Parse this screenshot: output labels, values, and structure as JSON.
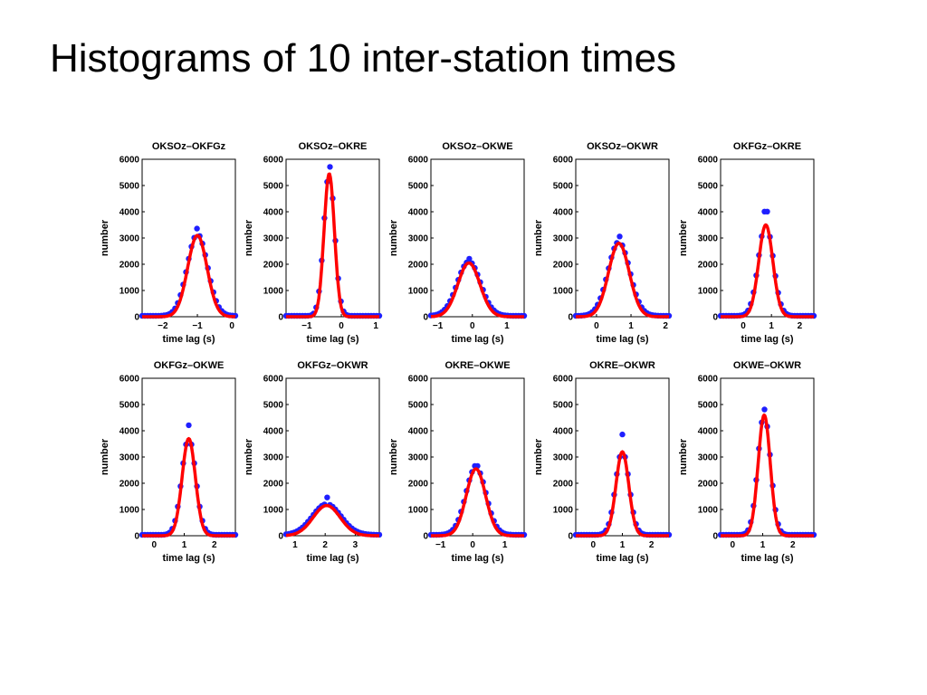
{
  "title": "Histograms of 10 inter-station times",
  "chart_data": [
    {
      "type": "scatter",
      "title": "OKSOz–OKFGz",
      "xlabel": "time lag (s)",
      "ylabel": "number",
      "xlim": [
        -2.6,
        0.1
      ],
      "ylim": [
        0,
        6000
      ],
      "xticks": [
        -2,
        -1,
        0
      ],
      "yticks": [
        0,
        1000,
        2000,
        3000,
        4000,
        5000,
        6000
      ],
      "peak_x": -1.0,
      "fit_peak": 3100,
      "width": 0.28,
      "points_peak": 3300
    },
    {
      "type": "scatter",
      "title": "OKSOz–OKRE",
      "xlabel": "time lag (s)",
      "ylabel": "number",
      "xlim": [
        -1.6,
        1.1
      ],
      "ylim": [
        0,
        6000
      ],
      "xticks": [
        -1,
        0,
        1
      ],
      "yticks": [
        0,
        1000,
        2000,
        3000,
        4000,
        5000,
        6000
      ],
      "peak_x": -0.35,
      "fit_peak": 5450,
      "width": 0.15,
      "points_peak": 5650
    },
    {
      "type": "scatter",
      "title": "OKSOz–OKWE",
      "xlabel": "time lag (s)",
      "ylabel": "number",
      "xlim": [
        -1.2,
        1.5
      ],
      "ylim": [
        0,
        6000
      ],
      "xticks": [
        -1,
        0,
        1
      ],
      "yticks": [
        0,
        1000,
        2000,
        3000,
        4000,
        5000,
        6000
      ],
      "peak_x": -0.1,
      "fit_peak": 2050,
      "width": 0.32,
      "points_peak": 2150
    },
    {
      "type": "scatter",
      "title": "OKSOz–OKWR",
      "xlabel": "time lag (s)",
      "ylabel": "number",
      "xlim": [
        -0.6,
        2.1
      ],
      "ylim": [
        0,
        6000
      ],
      "xticks": [
        0,
        1,
        2
      ],
      "yticks": [
        0,
        1000,
        2000,
        3000,
        4000,
        5000,
        6000
      ],
      "peak_x": 0.65,
      "fit_peak": 2800,
      "width": 0.3,
      "points_peak": 3000
    },
    {
      "type": "scatter",
      "title": "OKFGz–OKRE",
      "xlabel": "time lag (s)",
      "ylabel": "number",
      "xlim": [
        -0.8,
        2.5
      ],
      "ylim": [
        0,
        6000
      ],
      "xticks": [
        0,
        1,
        2
      ],
      "yticks": [
        0,
        1000,
        2000,
        3000,
        4000,
        5000,
        6000
      ],
      "peak_x": 0.8,
      "fit_peak": 3500,
      "width": 0.25,
      "points_peak": 3950
    },
    {
      "type": "scatter",
      "title": "OKFGz–OKWE",
      "xlabel": "time lag (s)",
      "ylabel": "number",
      "xlim": [
        -0.4,
        2.7
      ],
      "ylim": [
        0,
        6000
      ],
      "xticks": [
        0,
        1,
        2
      ],
      "yticks": [
        0,
        1000,
        2000,
        3000,
        4000,
        5000,
        6000
      ],
      "peak_x": 1.15,
      "fit_peak": 3700,
      "width": 0.22,
      "points_peak": 4150
    },
    {
      "type": "scatter",
      "title": "OKFGz–OKWR",
      "xlabel": "time lag (s)",
      "ylabel": "number",
      "xlim": [
        0.7,
        3.8
      ],
      "ylim": [
        0,
        6000
      ],
      "xticks": [
        1,
        2,
        3
      ],
      "yticks": [
        0,
        1000,
        2000,
        3000,
        4000,
        5000,
        6000
      ],
      "peak_x": 2.05,
      "fit_peak": 1150,
      "width": 0.45,
      "points_peak": 1400
    },
    {
      "type": "scatter",
      "title": "OKRE–OKWE",
      "xlabel": "time lag (s)",
      "ylabel": "number",
      "xlim": [
        -1.3,
        1.6
      ],
      "ylim": [
        0,
        6000
      ],
      "xticks": [
        -1,
        0,
        1
      ],
      "yticks": [
        0,
        1000,
        2000,
        3000,
        4000,
        5000,
        6000
      ],
      "peak_x": 0.1,
      "fit_peak": 2550,
      "width": 0.3,
      "points_peak": 2600
    },
    {
      "type": "scatter",
      "title": "OKRE–OKWR",
      "xlabel": "time lag (s)",
      "ylabel": "number",
      "xlim": [
        -0.6,
        2.6
      ],
      "ylim": [
        0,
        6000
      ],
      "xticks": [
        0,
        1,
        2
      ],
      "yticks": [
        0,
        1000,
        2000,
        3000,
        4000,
        5000,
        6000
      ],
      "peak_x": 1.0,
      "fit_peak": 3200,
      "width": 0.22,
      "points_peak": 3800
    },
    {
      "type": "scatter",
      "title": "OKWE–OKWR",
      "xlabel": "time lag (s)",
      "ylabel": "number",
      "xlim": [
        -0.4,
        2.7
      ],
      "ylim": [
        0,
        6000
      ],
      "xticks": [
        0,
        1,
        2
      ],
      "yticks": [
        0,
        1000,
        2000,
        3000,
        4000,
        5000,
        6000
      ],
      "peak_x": 1.05,
      "fit_peak": 4600,
      "width": 0.2,
      "points_peak": 4750
    }
  ],
  "colors": {
    "fit": "#ff0000",
    "points": "#1f1fff",
    "axis": "#000000"
  }
}
